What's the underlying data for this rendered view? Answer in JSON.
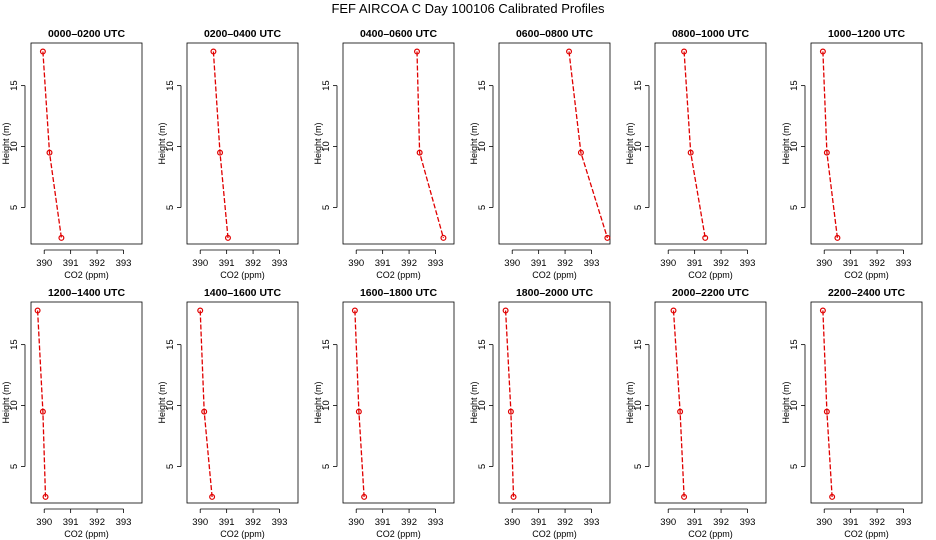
{
  "figure": {
    "title": "FEF AIRCOA C  Day 100106  Calibrated Profiles",
    "series_color": "#e00000"
  },
  "chart_data": [
    {
      "type": "line",
      "title": "0000–0200 UTC",
      "xlabel": "CO2 (ppm)",
      "ylabel": "Height (m)",
      "xlim": [
        389.5,
        393.7
      ],
      "ylim": [
        2.0,
        18.5
      ],
      "xticks": [
        390,
        391,
        392,
        393
      ],
      "yticks": [
        5,
        10,
        15
      ],
      "x": [
        389.95,
        390.2,
        390.65
      ],
      "y": [
        17.8,
        9.5,
        2.5
      ]
    },
    {
      "type": "line",
      "title": "0200–0400 UTC",
      "xlabel": "CO2 (ppm)",
      "ylabel": "Height (m)",
      "xlim": [
        389.5,
        393.7
      ],
      "ylim": [
        2.0,
        18.5
      ],
      "xticks": [
        390,
        391,
        392,
        393
      ],
      "yticks": [
        5,
        10,
        15
      ],
      "x": [
        390.5,
        390.75,
        391.05
      ],
      "y": [
        17.8,
        9.5,
        2.5
      ]
    },
    {
      "type": "line",
      "title": "0400–0600 UTC",
      "xlabel": "CO2 (ppm)",
      "ylabel": "Height (m)",
      "xlim": [
        389.5,
        393.7
      ],
      "ylim": [
        2.0,
        18.5
      ],
      "xticks": [
        390,
        391,
        392,
        393
      ],
      "yticks": [
        5,
        10,
        15
      ],
      "x": [
        392.3,
        392.4,
        393.3
      ],
      "y": [
        17.8,
        9.5,
        2.5
      ]
    },
    {
      "type": "line",
      "title": "0600–0800 UTC",
      "xlabel": "CO2 (ppm)",
      "ylabel": "Height (m)",
      "xlim": [
        389.5,
        393.7
      ],
      "ylim": [
        2.0,
        18.5
      ],
      "xticks": [
        390,
        391,
        392,
        393
      ],
      "yticks": [
        5,
        10,
        15
      ],
      "x": [
        392.15,
        392.6,
        393.6
      ],
      "y": [
        17.8,
        9.5,
        2.5
      ]
    },
    {
      "type": "line",
      "title": "0800–1000 UTC",
      "xlabel": "CO2 (ppm)",
      "ylabel": "Height (m)",
      "xlim": [
        389.5,
        393.7
      ],
      "ylim": [
        2.0,
        18.5
      ],
      "xticks": [
        390,
        391,
        392,
        393
      ],
      "yticks": [
        5,
        10,
        15
      ],
      "x": [
        390.6,
        390.85,
        391.4
      ],
      "y": [
        17.8,
        9.5,
        2.5
      ]
    },
    {
      "type": "line",
      "title": "1000–1200 UTC",
      "xlabel": "CO2 (ppm)",
      "ylabel": "Height (m)",
      "xlim": [
        389.5,
        393.7
      ],
      "ylim": [
        2.0,
        18.5
      ],
      "xticks": [
        390,
        391,
        392,
        393
      ],
      "yticks": [
        5,
        10,
        15
      ],
      "x": [
        389.95,
        390.1,
        390.5
      ],
      "y": [
        17.8,
        9.5,
        2.5
      ]
    },
    {
      "type": "line",
      "title": "1200–1400 UTC",
      "xlabel": "CO2 (ppm)",
      "ylabel": "Height (m)",
      "xlim": [
        389.5,
        393.7
      ],
      "ylim": [
        2.0,
        18.5
      ],
      "xticks": [
        390,
        391,
        392,
        393
      ],
      "yticks": [
        5,
        10,
        15
      ],
      "x": [
        389.75,
        389.95,
        390.05
      ],
      "y": [
        17.8,
        9.5,
        2.5
      ]
    },
    {
      "type": "line",
      "title": "1400–1600 UTC",
      "xlabel": "CO2 (ppm)",
      "ylabel": "Height (m)",
      "xlim": [
        389.5,
        393.7
      ],
      "ylim": [
        2.0,
        18.5
      ],
      "xticks": [
        390,
        391,
        392,
        393
      ],
      "yticks": [
        5,
        10,
        15
      ],
      "x": [
        390.0,
        390.15,
        390.45
      ],
      "y": [
        17.8,
        9.5,
        2.5
      ]
    },
    {
      "type": "line",
      "title": "1600–1800 UTC",
      "xlabel": "CO2 (ppm)",
      "ylabel": "Height (m)",
      "xlim": [
        389.5,
        393.7
      ],
      "ylim": [
        2.0,
        18.5
      ],
      "xticks": [
        390,
        391,
        392,
        393
      ],
      "yticks": [
        5,
        10,
        15
      ],
      "x": [
        389.95,
        390.1,
        390.3
      ],
      "y": [
        17.8,
        9.5,
        2.5
      ]
    },
    {
      "type": "line",
      "title": "1800–2000 UTC",
      "xlabel": "CO2 (ppm)",
      "ylabel": "Height (m)",
      "xlim": [
        389.5,
        393.7
      ],
      "ylim": [
        2.0,
        18.5
      ],
      "xticks": [
        390,
        391,
        392,
        393
      ],
      "yticks": [
        5,
        10,
        15
      ],
      "x": [
        389.75,
        389.95,
        390.05
      ],
      "y": [
        17.8,
        9.5,
        2.5
      ]
    },
    {
      "type": "line",
      "title": "2000–2200 UTC",
      "xlabel": "CO2 (ppm)",
      "ylabel": "Height (m)",
      "xlim": [
        389.5,
        393.7
      ],
      "ylim": [
        2.0,
        18.5
      ],
      "xticks": [
        390,
        391,
        392,
        393
      ],
      "yticks": [
        5,
        10,
        15
      ],
      "x": [
        390.2,
        390.45,
        390.6
      ],
      "y": [
        17.8,
        9.5,
        2.5
      ]
    },
    {
      "type": "line",
      "title": "2200–2400 UTC",
      "xlabel": "CO2 (ppm)",
      "ylabel": "Height (m)",
      "xlim": [
        389.5,
        393.7
      ],
      "ylim": [
        2.0,
        18.5
      ],
      "xticks": [
        390,
        391,
        392,
        393
      ],
      "yticks": [
        5,
        10,
        15
      ],
      "x": [
        389.95,
        390.1,
        390.3
      ],
      "y": [
        17.8,
        9.5,
        2.5
      ]
    }
  ]
}
